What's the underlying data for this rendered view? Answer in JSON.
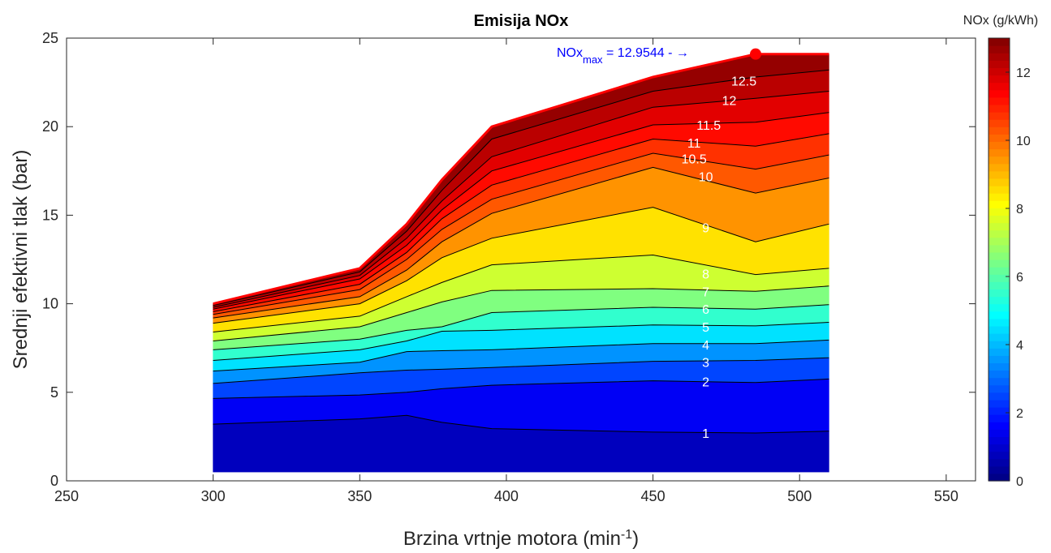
{
  "chart_data": {
    "type": "contour",
    "title": "Emisija NOx",
    "xlabel": {
      "base": "Brzina vrtnje motora (min",
      "sup": "-1",
      "close": ")"
    },
    "ylabel": "Srednji efektivni tlak (bar)",
    "xlim": [
      250,
      560
    ],
    "ylim": [
      0,
      25
    ],
    "xticks": [
      250,
      300,
      350,
      400,
      450,
      500,
      550
    ],
    "yticks": [
      0,
      5,
      10,
      15,
      20,
      25
    ],
    "grid": false,
    "colorbar": {
      "label": "NOx (g/kWh)",
      "range": [
        0,
        13
      ],
      "ticks": [
        0,
        2,
        4,
        6,
        8,
        10,
        12
      ],
      "colormap": "jet"
    },
    "x": [
      300,
      350,
      366,
      378,
      395,
      450,
      485,
      510
    ],
    "envelope": {
      "upper": [
        10.0,
        12.0,
        14.5,
        17.0,
        20.0,
        22.8,
        24.1,
        24.1
      ],
      "lower": [
        0.5,
        0.5,
        0.5,
        0.5,
        0.5,
        0.5,
        0.5,
        0.5
      ]
    },
    "contours": [
      {
        "level": 1,
        "label": "1",
        "y": [
          3.2,
          3.5,
          3.7,
          3.3,
          2.95,
          2.75,
          2.7,
          2.8
        ]
      },
      {
        "level": 2,
        "label": "2",
        "y": [
          4.65,
          4.85,
          5.0,
          5.2,
          5.4,
          5.65,
          5.55,
          5.75
        ]
      },
      {
        "level": 3,
        "label": "3",
        "y": [
          5.5,
          6.1,
          6.25,
          6.3,
          6.4,
          6.75,
          6.8,
          6.95
        ]
      },
      {
        "level": 4,
        "label": "4",
        "y": [
          6.2,
          6.7,
          7.3,
          7.35,
          7.4,
          7.75,
          7.75,
          7.95
        ]
      },
      {
        "level": 5,
        "label": "5",
        "y": [
          6.8,
          7.4,
          7.9,
          8.45,
          8.5,
          8.8,
          8.75,
          8.95
        ]
      },
      {
        "level": 6,
        "label": "6",
        "y": [
          7.4,
          8.0,
          8.5,
          8.7,
          9.5,
          9.8,
          9.7,
          9.95
        ]
      },
      {
        "level": 7,
        "label": "7",
        "y": [
          7.9,
          8.7,
          9.5,
          10.1,
          10.75,
          10.85,
          10.7,
          11.0
        ]
      },
      {
        "level": 8,
        "label": "8",
        "y": [
          8.4,
          9.3,
          10.4,
          11.2,
          12.2,
          12.75,
          11.65,
          12.0
        ]
      },
      {
        "level": 9,
        "label": "9",
        "y": [
          8.9,
          10.0,
          11.3,
          12.6,
          13.7,
          15.45,
          13.5,
          14.5
        ]
      },
      {
        "level": 10,
        "label": "10",
        "y": [
          9.2,
          10.4,
          11.9,
          13.5,
          15.1,
          17.7,
          16.25,
          17.1
        ]
      },
      {
        "level": 10.5,
        "label": "10.5",
        "y": [
          9.4,
          10.8,
          12.5,
          14.2,
          15.9,
          18.5,
          17.6,
          18.4
        ]
      },
      {
        "level": 11,
        "label": "11",
        "y": [
          9.55,
          11.1,
          12.9,
          14.8,
          16.7,
          19.3,
          18.9,
          19.6
        ]
      },
      {
        "level": 11.5,
        "label": "11.5",
        "y": [
          9.7,
          11.4,
          13.3,
          15.3,
          17.5,
          20.1,
          20.25,
          20.8
        ]
      },
      {
        "level": 12,
        "label": "12",
        "y": [
          9.8,
          11.6,
          13.7,
          15.8,
          18.3,
          21.1,
          21.6,
          22.0
        ]
      },
      {
        "level": 12.5,
        "label": "12.5",
        "y": [
          9.9,
          11.8,
          14.1,
          16.4,
          19.3,
          22.0,
          22.8,
          23.2
        ]
      }
    ],
    "contour_labels": [
      {
        "x": 468,
        "y": 2.7,
        "text": "1"
      },
      {
        "x": 468,
        "y": 5.6,
        "text": "2"
      },
      {
        "x": 468,
        "y": 6.7,
        "text": "3"
      },
      {
        "x": 468,
        "y": 7.7,
        "text": "4"
      },
      {
        "x": 468,
        "y": 8.7,
        "text": "5"
      },
      {
        "x": 468,
        "y": 9.7,
        "text": "6"
      },
      {
        "x": 468,
        "y": 10.7,
        "text": "7"
      },
      {
        "x": 468,
        "y": 11.7,
        "text": "8"
      },
      {
        "x": 468,
        "y": 14.3,
        "text": "9"
      },
      {
        "x": 468,
        "y": 17.2,
        "text": "10"
      },
      {
        "x": 464,
        "y": 18.2,
        "text": "10.5"
      },
      {
        "x": 464,
        "y": 19.1,
        "text": "11"
      },
      {
        "x": 469,
        "y": 20.1,
        "text": "11.5"
      },
      {
        "x": 476,
        "y": 21.5,
        "text": "12"
      },
      {
        "x": 481,
        "y": 22.6,
        "text": "12.5"
      }
    ],
    "max_point": {
      "x": 485,
      "y": 24.1,
      "value": "12.9544"
    },
    "max_note": {
      "prefix": "NOx",
      "sub": "max",
      "suffix": " = 12.9544 - →"
    }
  }
}
